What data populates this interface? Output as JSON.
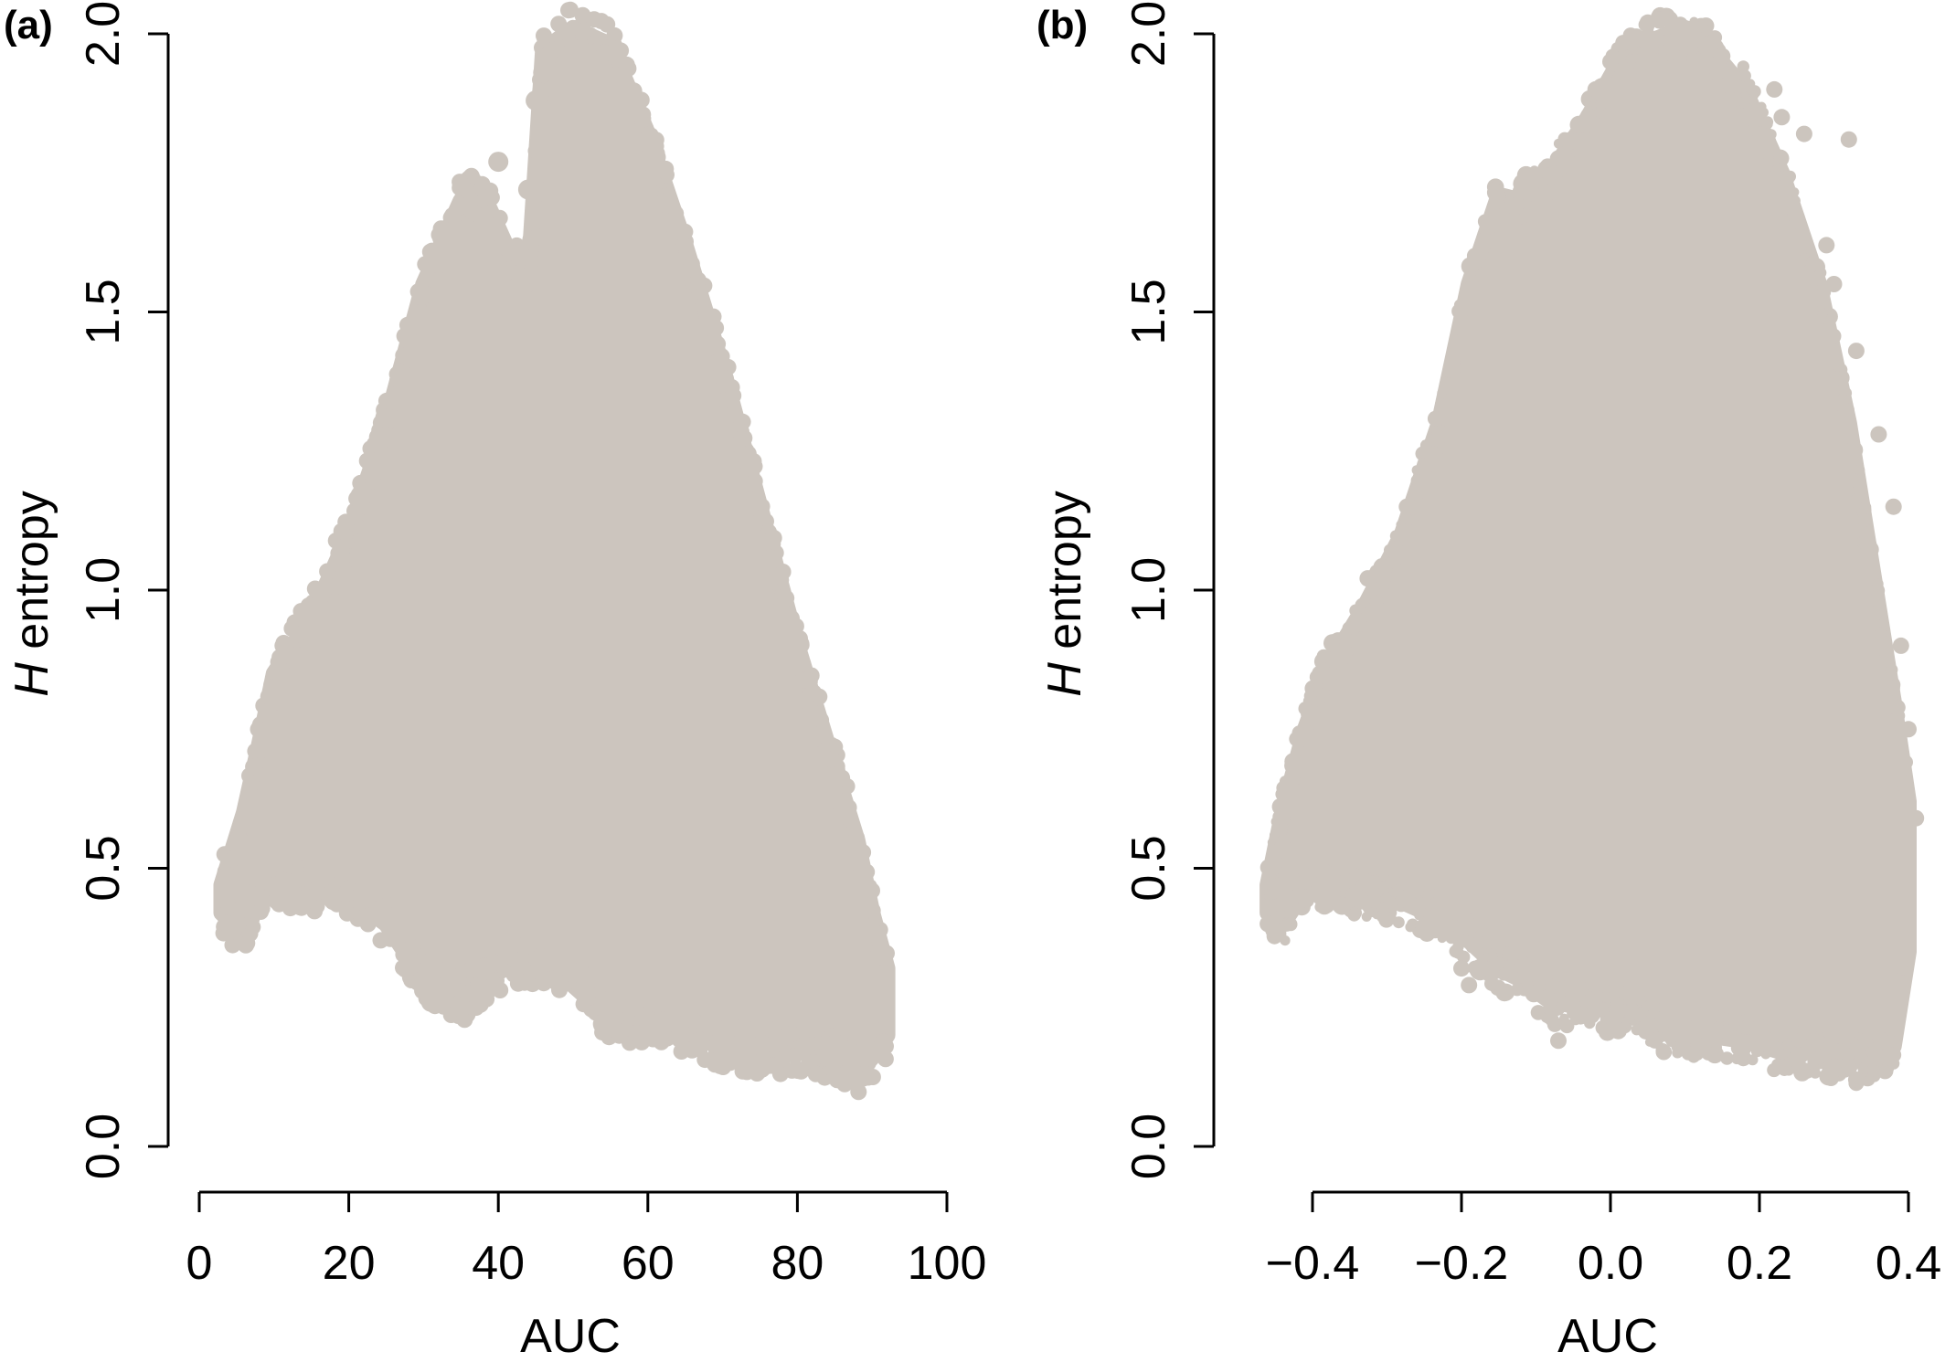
{
  "figure": {
    "panel_a_tag": "(a)",
    "panel_b_tag": "(b)"
  },
  "chart_data": [
    {
      "type": "scatter",
      "panel": "(a)",
      "xlabel": "AUC",
      "ylabel_italic": "H",
      "ylabel_rest": " entropy",
      "xlim": [
        0,
        100
      ],
      "ylim": [
        0,
        2
      ],
      "xticks": [
        0,
        20,
        40,
        60,
        80,
        100
      ],
      "xtick_labels": [
        "0",
        "20",
        "40",
        "60",
        "80",
        "100"
      ],
      "yticks": [
        0,
        0.5,
        1,
        1.5,
        2
      ],
      "ytick_labels": [
        "0.0",
        "0.5",
        "1.0",
        "1.5",
        "2.0"
      ],
      "grid": false,
      "point_color": "#ccc5be",
      "envelope": [
        {
          "x": 3,
          "upper": 0.47,
          "lower": 0.42
        },
        {
          "x": 6,
          "upper": 0.6,
          "lower": 0.38
        },
        {
          "x": 8,
          "upper": 0.72,
          "lower": 0.46
        },
        {
          "x": 10,
          "upper": 0.85,
          "lower": 0.47
        },
        {
          "x": 15,
          "upper": 0.95,
          "lower": 0.46
        },
        {
          "x": 20,
          "upper": 1.1,
          "lower": 0.45
        },
        {
          "x": 25,
          "upper": 1.3,
          "lower": 0.4
        },
        {
          "x": 30,
          "upper": 1.55,
          "lower": 0.3
        },
        {
          "x": 35,
          "upper": 1.7,
          "lower": 0.26
        },
        {
          "x": 38,
          "upper": 1.71,
          "lower": 0.3
        },
        {
          "x": 41,
          "upper": 1.62,
          "lower": 0.32
        },
        {
          "x": 44,
          "upper": 1.55,
          "lower": 0.33
        },
        {
          "x": 46,
          "upper": 1.97,
          "lower": 0.33
        },
        {
          "x": 50,
          "upper": 2.01,
          "lower": 0.29
        },
        {
          "x": 55,
          "upper": 1.98,
          "lower": 0.23
        },
        {
          "x": 60,
          "upper": 1.82,
          "lower": 0.22
        },
        {
          "x": 65,
          "upper": 1.62,
          "lower": 0.2
        },
        {
          "x": 70,
          "upper": 1.4,
          "lower": 0.18
        },
        {
          "x": 75,
          "upper": 1.15,
          "lower": 0.17
        },
        {
          "x": 80,
          "upper": 0.9,
          "lower": 0.17
        },
        {
          "x": 85,
          "upper": 0.68,
          "lower": 0.16
        },
        {
          "x": 88,
          "upper": 0.55,
          "lower": 0.13
        },
        {
          "x": 90,
          "upper": 0.42,
          "lower": 0.16
        },
        {
          "x": 92,
          "upper": 0.32,
          "lower": 0.2
        }
      ],
      "outlier_points": [
        [
          5,
          0.4
        ],
        [
          4,
          0.46
        ],
        [
          6,
          0.54
        ],
        [
          11,
          0.8
        ],
        [
          31,
          0.26
        ],
        [
          35,
          0.25
        ],
        [
          38,
          0.27
        ],
        [
          40,
          1.77
        ],
        [
          45,
          1.88
        ],
        [
          46,
          1.93
        ],
        [
          54,
          0.22
        ],
        [
          73,
          0.16
        ],
        [
          87,
          0.12
        ],
        [
          91,
          0.17
        ],
        [
          89,
          0.16
        ],
        [
          81,
          0.18
        ],
        [
          43,
          1.6
        ],
        [
          44,
          1.72
        ]
      ]
    },
    {
      "type": "scatter",
      "panel": "(b)",
      "xlabel": "AUC",
      "ylabel_italic": "H",
      "ylabel_rest": " entropy",
      "xlim": [
        -0.4,
        0.4
      ],
      "ylim": [
        0,
        2
      ],
      "xticks": [
        -0.4,
        -0.2,
        0,
        0.2,
        0.4
      ],
      "xtick_labels": [
        "−0.4",
        "−0.2",
        "0.0",
        "0.2",
        "0.4"
      ],
      "yticks": [
        0,
        0.5,
        1,
        1.5,
        2
      ],
      "ytick_labels": [
        "0.0",
        "0.5",
        "1.0",
        "1.5",
        "2.0"
      ],
      "grid": false,
      "point_color": "#ccc5be",
      "envelope": [
        {
          "x": -0.46,
          "upper": 0.47,
          "lower": 0.42
        },
        {
          "x": -0.44,
          "upper": 0.6,
          "lower": 0.4
        },
        {
          "x": -0.41,
          "upper": 0.75,
          "lower": 0.46
        },
        {
          "x": -0.38,
          "upper": 0.86,
          "lower": 0.47
        },
        {
          "x": -0.33,
          "upper": 0.97,
          "lower": 0.45
        },
        {
          "x": -0.28,
          "upper": 1.1,
          "lower": 0.44
        },
        {
          "x": -0.23,
          "upper": 1.3,
          "lower": 0.41
        },
        {
          "x": -0.19,
          "upper": 1.55,
          "lower": 0.37
        },
        {
          "x": -0.15,
          "upper": 1.71,
          "lower": 0.32
        },
        {
          "x": -0.12,
          "upper": 1.7,
          "lower": 0.3
        },
        {
          "x": -0.08,
          "upper": 1.75,
          "lower": 0.26
        },
        {
          "x": -0.03,
          "upper": 1.85,
          "lower": 0.25
        },
        {
          "x": 0.02,
          "upper": 1.97,
          "lower": 0.24
        },
        {
          "x": 0.08,
          "upper": 2.0,
          "lower": 0.2
        },
        {
          "x": 0.13,
          "upper": 1.98,
          "lower": 0.2
        },
        {
          "x": 0.18,
          "upper": 1.9,
          "lower": 0.19
        },
        {
          "x": 0.23,
          "upper": 1.75,
          "lower": 0.17
        },
        {
          "x": 0.28,
          "upper": 1.55,
          "lower": 0.17
        },
        {
          "x": 0.32,
          "upper": 1.3,
          "lower": 0.15
        },
        {
          "x": 0.35,
          "upper": 1.05,
          "lower": 0.16
        },
        {
          "x": 0.38,
          "upper": 0.8,
          "lower": 0.18
        },
        {
          "x": 0.4,
          "upper": 0.62,
          "lower": 0.35
        }
      ],
      "outlier_points": [
        [
          -0.46,
          0.4
        ],
        [
          -0.45,
          0.46
        ],
        [
          -0.44,
          0.54
        ],
        [
          -0.39,
          0.85
        ],
        [
          -0.2,
          0.32
        ],
        [
          -0.19,
          0.29
        ],
        [
          -0.07,
          0.19
        ],
        [
          0.33,
          0.12
        ],
        [
          0.36,
          0.16
        ],
        [
          0.37,
          0.16
        ],
        [
          0.32,
          1.81
        ],
        [
          0.38,
          1.15
        ],
        [
          0.41,
          0.59
        ],
        [
          0.05,
          2.02
        ],
        [
          0.1,
          2.01
        ],
        [
          0.22,
          1.9
        ],
        [
          0.26,
          1.82
        ],
        [
          0.29,
          1.62
        ],
        [
          0.36,
          1.28
        ],
        [
          -0.02,
          1.9
        ],
        [
          0.0,
          1.95
        ],
        [
          0.15,
          1.96
        ],
        [
          0.23,
          1.85
        ],
        [
          0.3,
          1.55
        ],
        [
          0.33,
          1.43
        ],
        [
          0.39,
          0.9
        ],
        [
          0.4,
          0.75
        ],
        [
          0.37,
          0.45
        ],
        [
          0.2,
          0.2
        ],
        [
          -0.24,
          0.4
        ]
      ]
    }
  ]
}
